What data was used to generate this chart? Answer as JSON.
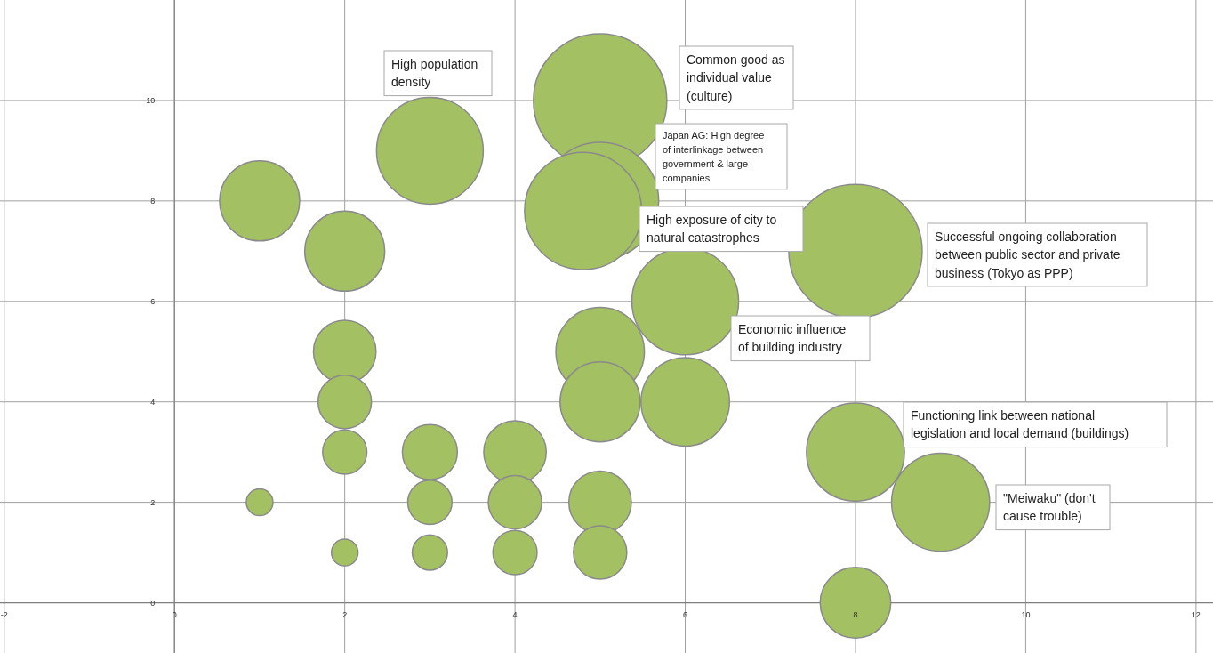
{
  "chart_data": {
    "type": "bubble",
    "x": [
      1,
      3,
      5,
      5,
      4.8,
      2,
      6,
      8,
      2,
      2,
      2,
      1,
      2,
      3,
      3,
      3,
      4,
      4,
      4,
      5,
      5,
      5,
      5,
      6,
      8,
      9,
      8
    ],
    "values": [
      8,
      9,
      10,
      8,
      7.8,
      7,
      6,
      7,
      5,
      4,
      3,
      2,
      1,
      3,
      2,
      1,
      3,
      2,
      1,
      5,
      4,
      2,
      1,
      4,
      3,
      2,
      0
    ],
    "sizes": [
      0.36,
      0.64,
      1,
      0.77,
      0.77,
      0.36,
      0.64,
      1,
      0.22,
      0.16,
      0.11,
      0.04,
      0.04,
      0.17,
      0.11,
      0.07,
      0.22,
      0.16,
      0.11,
      0.44,
      0.36,
      0.22,
      0.16,
      0.44,
      0.54,
      0.54,
      0.28
    ],
    "color": "#a3c163",
    "xlim": [
      -2.05,
      12.2
    ],
    "ylim": [
      -1,
      12
    ],
    "xticks": [
      -2,
      0,
      2,
      4,
      6,
      8,
      10,
      12
    ],
    "yticks": [
      0,
      2,
      4,
      6,
      8,
      10
    ],
    "grid": true,
    "annotations": [
      "High population\ndensity",
      "Common good as\nindividual value\n(culture)",
      "Japan AG: High degree\nof interlinkage  between\ngovernment  & large\ncompanies",
      "High exposure of city to\nnatural catastrophes",
      "Economic influence\nof building industry",
      "Successful ongoing collaboration\nbetween public sector and private\nbusiness (Tokyo as PPP)",
      "Functioning link between national\nlegislation and local demand (buildings)",
      "\"Meiwaku\" (don't\ncause trouble)"
    ]
  }
}
